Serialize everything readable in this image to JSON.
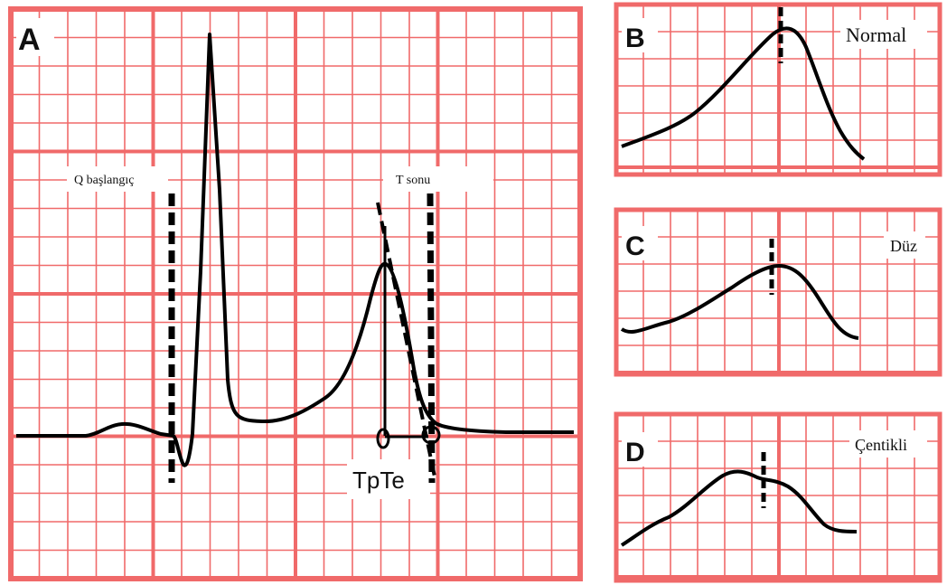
{
  "panels": [
    {
      "id": "A",
      "letter": "A",
      "caption": ""
    },
    {
      "id": "B",
      "letter": "B",
      "caption": "Normal"
    },
    {
      "id": "C",
      "letter": "C",
      "caption": "Düz"
    },
    {
      "id": "D",
      "letter": "D",
      "caption": "Çentikli"
    }
  ],
  "annotations": {
    "q_onset": "Q başlangıç",
    "t_end": "T sonu",
    "tpte": "TpTe"
  },
  "colors": {
    "grid": "#f06a6a",
    "grid_major": "#f06a6a",
    "trace": "#000000",
    "background": "#ffffff"
  }
}
